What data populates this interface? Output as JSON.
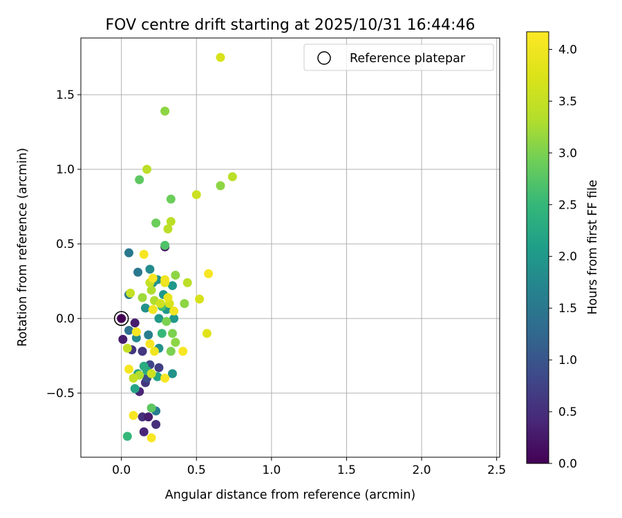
{
  "chart_data": {
    "type": "scatter",
    "title": "FOV centre drift starting at 2025/10/31 16:44:46",
    "xlabel": "Angular distance from reference (arcmin)",
    "ylabel": "Rotation from reference (arcmin)",
    "xlim": [
      -0.27,
      2.52
    ],
    "ylim": [
      -0.93,
      1.88
    ],
    "xticks": [
      0.0,
      0.5,
      1.0,
      1.5,
      2.0,
      2.5
    ],
    "xtick_labels": [
      "0.0",
      "0.5",
      "1.0",
      "1.5",
      "2.0",
      "2.5"
    ],
    "yticks": [
      -0.5,
      0.0,
      0.5,
      1.0,
      1.5
    ],
    "ytick_labels": [
      "−0.5",
      "0.0",
      "0.5",
      "1.0",
      "1.5"
    ],
    "grid": true,
    "legend": {
      "position": "top-right",
      "entries": [
        "Reference platepar"
      ]
    },
    "reference_point": {
      "x": 0.0,
      "y": 0.0
    },
    "colorbar": {
      "label": "Hours from first FF file",
      "range": [
        0.0,
        4.17
      ],
      "ticks": [
        0.0,
        0.5,
        1.0,
        1.5,
        2.0,
        2.5,
        3.0,
        3.5,
        4.0
      ],
      "tick_labels": [
        "0.0",
        "0.5",
        "1.0",
        "1.5",
        "2.0",
        "2.5",
        "3.0",
        "3.5",
        "4.0"
      ],
      "colormap": "viridis"
    },
    "points": [
      {
        "x": 0.0,
        "y": 0.0,
        "h": 0.0
      },
      {
        "x": 0.01,
        "y": -0.14,
        "h": 0.3
      },
      {
        "x": 0.09,
        "y": -0.03,
        "h": 0.3
      },
      {
        "x": 0.12,
        "y": -0.49,
        "h": 0.4
      },
      {
        "x": 0.14,
        "y": -0.66,
        "h": 0.5
      },
      {
        "x": 0.15,
        "y": -0.76,
        "h": 0.4
      },
      {
        "x": 0.18,
        "y": -0.66,
        "h": 0.3
      },
      {
        "x": 0.23,
        "y": -0.71,
        "h": 0.5
      },
      {
        "x": 0.29,
        "y": 0.48,
        "h": 0.2
      },
      {
        "x": 0.14,
        "y": -0.22,
        "h": 0.6
      },
      {
        "x": 0.07,
        "y": -0.21,
        "h": 0.6
      },
      {
        "x": 0.16,
        "y": -0.43,
        "h": 0.6
      },
      {
        "x": 0.19,
        "y": -0.31,
        "h": 0.8
      },
      {
        "x": 0.25,
        "y": -0.33,
        "h": 0.7
      },
      {
        "x": 0.17,
        "y": -0.4,
        "h": 0.9
      },
      {
        "x": 0.05,
        "y": -0.08,
        "h": 1.4
      },
      {
        "x": 0.05,
        "y": 0.44,
        "h": 1.5
      },
      {
        "x": 0.05,
        "y": 0.16,
        "h": 1.5
      },
      {
        "x": 0.11,
        "y": 0.31,
        "h": 1.5
      },
      {
        "x": 0.18,
        "y": -0.11,
        "h": 1.6
      },
      {
        "x": 0.23,
        "y": -0.62,
        "h": 1.6
      },
      {
        "x": 0.1,
        "y": -0.13,
        "h": 1.8
      },
      {
        "x": 0.19,
        "y": 0.33,
        "h": 1.8
      },
      {
        "x": 0.16,
        "y": 0.07,
        "h": 1.9
      },
      {
        "x": 0.21,
        "y": 0.24,
        "h": 1.9
      },
      {
        "x": 0.24,
        "y": 0.26,
        "h": 1.9
      },
      {
        "x": 0.25,
        "y": -0.2,
        "h": 1.9
      },
      {
        "x": 0.25,
        "y": 0.0,
        "h": 2.0
      },
      {
        "x": 0.28,
        "y": 0.16,
        "h": 2.0
      },
      {
        "x": 0.3,
        "y": 0.06,
        "h": 2.0
      },
      {
        "x": 0.34,
        "y": 0.22,
        "h": 2.0
      },
      {
        "x": 0.35,
        "y": 0.0,
        "h": 2.0
      },
      {
        "x": 0.34,
        "y": -0.37,
        "h": 1.9
      },
      {
        "x": 0.24,
        "y": -0.39,
        "h": 2.2
      },
      {
        "x": 0.11,
        "y": -0.37,
        "h": 2.2
      },
      {
        "x": 0.09,
        "y": -0.47,
        "h": 2.2
      },
      {
        "x": 0.15,
        "y": -0.32,
        "h": 2.3
      },
      {
        "x": 0.17,
        "y": -0.35,
        "h": 2.3
      },
      {
        "x": 0.27,
        "y": -0.1,
        "h": 2.5
      },
      {
        "x": 0.04,
        "y": -0.79,
        "h": 2.5
      },
      {
        "x": 0.27,
        "y": 0.08,
        "h": 2.6
      },
      {
        "x": 0.29,
        "y": 0.49,
        "h": 2.7
      },
      {
        "x": 0.2,
        "y": -0.6,
        "h": 2.8
      },
      {
        "x": 0.12,
        "y": 0.93,
        "h": 2.8
      },
      {
        "x": 0.33,
        "y": 0.8,
        "h": 2.9
      },
      {
        "x": 0.23,
        "y": 0.64,
        "h": 2.9
      },
      {
        "x": 0.3,
        "y": -0.02,
        "h": 3.0
      },
      {
        "x": 0.34,
        "y": -0.1,
        "h": 3.0
      },
      {
        "x": 0.33,
        "y": -0.22,
        "h": 3.0
      },
      {
        "x": 0.36,
        "y": -0.16,
        "h": 3.1
      },
      {
        "x": 0.29,
        "y": 1.39,
        "h": 3.1
      },
      {
        "x": 0.66,
        "y": 0.89,
        "h": 3.1
      },
      {
        "x": 0.36,
        "y": 0.29,
        "h": 3.1
      },
      {
        "x": 0.42,
        "y": 0.1,
        "h": 3.1
      },
      {
        "x": 0.14,
        "y": 0.14,
        "h": 3.2
      },
      {
        "x": 0.2,
        "y": 0.19,
        "h": 3.3
      },
      {
        "x": 0.22,
        "y": 0.12,
        "h": 3.3
      },
      {
        "x": 0.12,
        "y": -0.38,
        "h": 3.3
      },
      {
        "x": 0.31,
        "y": 0.6,
        "h": 3.4
      },
      {
        "x": 0.33,
        "y": 0.65,
        "h": 3.4
      },
      {
        "x": 0.17,
        "y": 1.0,
        "h": 3.4
      },
      {
        "x": 0.74,
        "y": 0.95,
        "h": 3.4
      },
      {
        "x": 0.44,
        "y": 0.24,
        "h": 3.4
      },
      {
        "x": 0.06,
        "y": 0.17,
        "h": 3.5
      },
      {
        "x": 0.04,
        "y": -0.2,
        "h": 3.5
      },
      {
        "x": 0.08,
        "y": -0.4,
        "h": 3.5
      },
      {
        "x": 0.19,
        "y": 0.24,
        "h": 3.5
      },
      {
        "x": 0.26,
        "y": 0.1,
        "h": 3.6
      },
      {
        "x": 0.2,
        "y": -0.37,
        "h": 3.6
      },
      {
        "x": 0.5,
        "y": 0.83,
        "h": 3.6
      },
      {
        "x": 0.66,
        "y": 1.75,
        "h": 3.7
      },
      {
        "x": 0.32,
        "y": 0.1,
        "h": 3.7
      },
      {
        "x": 0.52,
        "y": 0.13,
        "h": 3.7
      },
      {
        "x": 0.57,
        "y": -0.1,
        "h": 3.8
      },
      {
        "x": 0.31,
        "y": 0.14,
        "h": 3.9
      },
      {
        "x": 0.29,
        "y": 0.24,
        "h": 3.9
      },
      {
        "x": 0.21,
        "y": 0.06,
        "h": 4.0
      },
      {
        "x": 0.35,
        "y": 0.05,
        "h": 4.0
      },
      {
        "x": 0.21,
        "y": 0.27,
        "h": 4.1
      },
      {
        "x": 0.15,
        "y": 0.43,
        "h": 4.1
      },
      {
        "x": 0.58,
        "y": 0.3,
        "h": 4.1
      },
      {
        "x": 0.1,
        "y": -0.09,
        "h": 4.1
      },
      {
        "x": 0.19,
        "y": -0.17,
        "h": 4.1
      },
      {
        "x": 0.22,
        "y": -0.22,
        "h": 4.0
      },
      {
        "x": 0.05,
        "y": -0.34,
        "h": 4.1
      },
      {
        "x": 0.41,
        "y": -0.22,
        "h": 4.1
      },
      {
        "x": 0.29,
        "y": -0.4,
        "h": 4.1
      },
      {
        "x": 0.08,
        "y": -0.65,
        "h": 4.1
      },
      {
        "x": 0.2,
        "y": -0.8,
        "h": 4.1
      },
      {
        "x": 0.29,
        "y": 0.26,
        "h": 4.0
      }
    ]
  }
}
